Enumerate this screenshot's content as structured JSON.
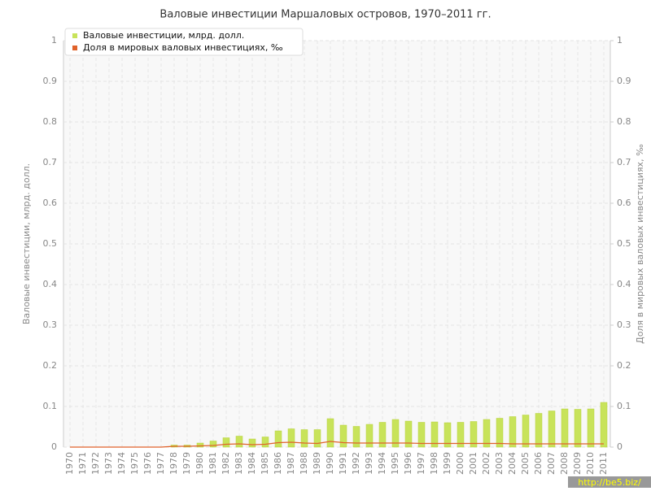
{
  "chart_data": {
    "type": "bar",
    "title": "Валовые инвестиции Маршаловых островов, 1970–2011 гг.",
    "y_label": "Валовые инвестиции, млрд. долл.",
    "y2_label": "Доля в мировых валовых инвестициях, ‰",
    "watermark": "http://be5.biz/",
    "categories": [
      "1970",
      "1971",
      "1972",
      "1973",
      "1974",
      "1975",
      "1976",
      "1977",
      "1978",
      "1979",
      "1980",
      "1981",
      "1982",
      "1983",
      "1984",
      "1985",
      "1986",
      "1987",
      "1988",
      "1989",
      "1990",
      "1991",
      "1992",
      "1993",
      "1994",
      "1995",
      "1996",
      "1997",
      "1998",
      "1999",
      "2000",
      "2001",
      "2002",
      "2003",
      "2004",
      "2005",
      "2006",
      "2007",
      "2008",
      "2009",
      "2010",
      "2011"
    ],
    "series": [
      {
        "name": "Валовые инвестиции, млрд. долл.",
        "type": "bar",
        "color": "#c8e35a",
        "values": [
          0,
          0,
          0,
          0,
          0,
          0,
          0,
          0,
          0.005,
          0.005,
          0.01,
          0.015,
          0.023,
          0.027,
          0.02,
          0.025,
          0.04,
          0.045,
          0.043,
          0.043,
          0.07,
          0.054,
          0.051,
          0.056,
          0.061,
          0.068,
          0.064,
          0.061,
          0.062,
          0.06,
          0.061,
          0.063,
          0.068,
          0.071,
          0.075,
          0.079,
          0.083,
          0.089,
          0.094,
          0.093,
          0.094,
          0.11
        ]
      },
      {
        "name": "Доля в мировых валовых инвестициях, ‰",
        "type": "line",
        "axis": "y2",
        "color": "#e0622a",
        "values": [
          0,
          0,
          0,
          0,
          0,
          0,
          0,
          0,
          0.002,
          0.002,
          0.003,
          0.004,
          0.007,
          0.008,
          0.006,
          0.007,
          0.011,
          0.012,
          0.01,
          0.009,
          0.014,
          0.011,
          0.01,
          0.01,
          0.01,
          0.01,
          0.01,
          0.009,
          0.009,
          0.009,
          0.009,
          0.009,
          0.009,
          0.009,
          0.008,
          0.008,
          0.008,
          0.008,
          0.008,
          0.008,
          0.008,
          0.008
        ]
      }
    ],
    "ylim": [
      0,
      1
    ],
    "yticks": [
      0,
      0.1,
      0.2,
      0.3,
      0.4,
      0.5,
      0.6,
      0.7,
      0.8,
      0.9,
      1
    ],
    "y2lim": [
      0,
      1
    ],
    "y2ticks": [
      0,
      0.1,
      0.2,
      0.3,
      0.4,
      0.5,
      0.6,
      0.7,
      0.8,
      0.9,
      1
    ],
    "grid": true,
    "legend": "top-left"
  }
}
